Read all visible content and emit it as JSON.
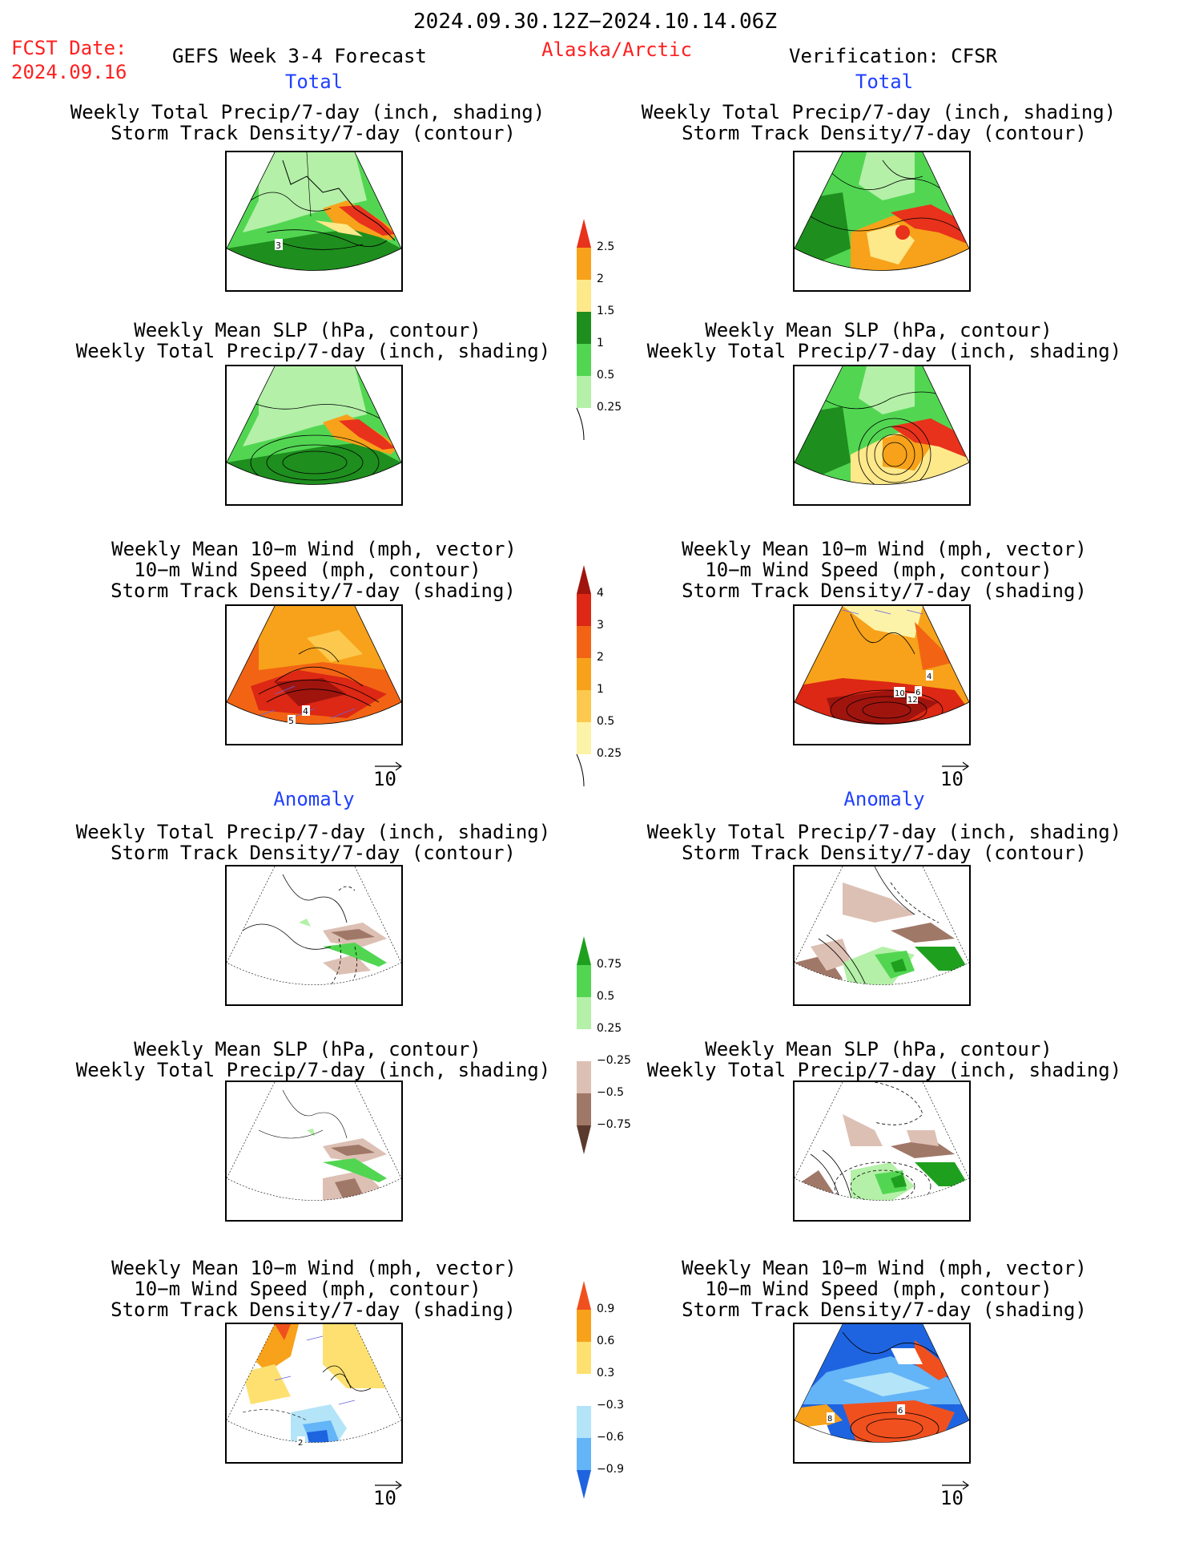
{
  "header": {
    "period": "2024.09.30.12Z−2024.10.14.06Z",
    "fcst_label": "FCST Date:",
    "fcst_date": "2024.09.16",
    "forecast_title": "GEFS Week 3-4 Forecast",
    "region": "Alaska/Arctic",
    "verification": "Verification: CFSR"
  },
  "sections": {
    "total": "Total",
    "anomaly": "Anomaly"
  },
  "panel_titles": {
    "precip_storm": [
      "Weekly Total Precip/7-day (inch, shading)",
      "Storm Track Density/7-day (contour)"
    ],
    "slp_precip": [
      "Weekly Mean SLP (hPa, contour)",
      "Weekly Total Precip/7-day (inch, shading)"
    ],
    "wind_storm": [
      "Weekly Mean 10−m Wind (mph, vector)",
      "10−m Wind Speed (mph, contour)",
      "Storm Track Density/7-day (shading)"
    ]
  },
  "contour_labels": {
    "p1_left": "3",
    "p3_left_a": "5",
    "p3_left_b": "4",
    "p3_right_a": "10",
    "p3_right_b": "12",
    "p3_right_c": "4",
    "p3_right_d": "6",
    "p6_left": "2",
    "p6_right_a": "8",
    "p6_right_b": "6"
  },
  "vector_reference": "10",
  "colorbars": {
    "precip_total": {
      "labels": [
        "2.5",
        "2",
        "1.5",
        "1",
        "0.5",
        "0.25"
      ],
      "colors": [
        "#e8321c",
        "#f7a21a",
        "#fde88a",
        "#1e8e1e",
        "#52d652",
        "#b4f0a8"
      ]
    },
    "storm_total": {
      "labels": [
        "4",
        "3",
        "2",
        "1",
        "0.5",
        "0.25"
      ],
      "colors": [
        "#a0140e",
        "#dc2814",
        "#f26414",
        "#f7a21a",
        "#fcc94e",
        "#fdf3a8"
      ]
    },
    "precip_anom": {
      "labels": [
        "0.75",
        "0.5",
        "0.25",
        "−0.25",
        "−0.5",
        "−0.75"
      ],
      "colors": [
        "#1ea01e",
        "#52d652",
        "#b4f0a8",
        "#ffffff",
        "#ddc0b4",
        "#a07868",
        "#5a3a2c"
      ]
    },
    "storm_anom": {
      "labels": [
        "0.9",
        "0.6",
        "0.3",
        "−0.3",
        "−0.6",
        "−0.9"
      ],
      "colors": [
        "#f0501e",
        "#f7a21a",
        "#fde070",
        "#ffffff",
        "#b4e4f8",
        "#64b4f8",
        "#1e64e0"
      ]
    }
  }
}
